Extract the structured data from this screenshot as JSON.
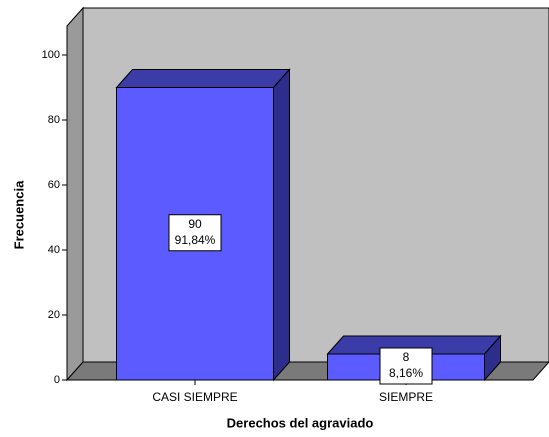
{
  "chart_data": {
    "type": "bar",
    "categories": [
      "CASI SIEMPRE",
      "SIEMPRE"
    ],
    "values": [
      90,
      8
    ],
    "percent": [
      91.84,
      8.16
    ],
    "percent_labels": [
      "91,84%",
      "8,16%"
    ],
    "color": "#5b5bff",
    "xlabel": "Derechos del agraviado",
    "ylabel": "Frecuencia",
    "ylim": [
      0,
      100
    ],
    "yticks": [
      0,
      20,
      40,
      60,
      80,
      100
    ]
  }
}
